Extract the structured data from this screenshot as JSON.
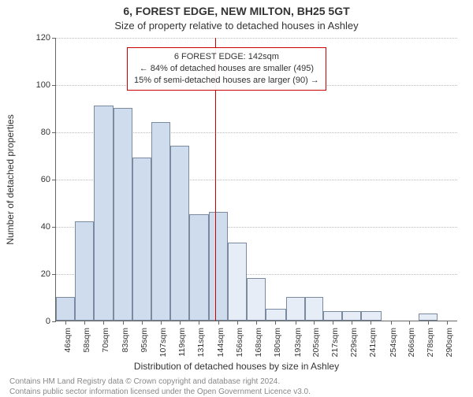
{
  "chart": {
    "type": "histogram",
    "title_line1": "6, FOREST EDGE, NEW MILTON, BH25 5GT",
    "title_line2": "Size of property relative to detached houses in Ashley",
    "title_fontsize": 14,
    "subtitle_fontsize": 13,
    "background_color": "#ffffff",
    "bar_fill_color": "#cfdcee",
    "bar_fill_color_right": "#e6edf7",
    "bar_border_color": "#7a8aa0",
    "grid_color": "#bbbbbb",
    "axis_color": "#666666",
    "marker_color": "#cc0000",
    "marker_value": 142,
    "ylim": [
      0,
      120
    ],
    "ytick_step": 20,
    "xlim": [
      40,
      297
    ],
    "yaxis_label": "Number of detached properties",
    "xaxis_label": "Distribution of detached houses by size in Ashley",
    "label_fontsize": 12,
    "tick_fontsize": 11,
    "x_ticks": [
      {
        "value": 46,
        "label": "46sqm"
      },
      {
        "value": 58,
        "label": "58sqm"
      },
      {
        "value": 70,
        "label": "70sqm"
      },
      {
        "value": 83,
        "label": "83sqm"
      },
      {
        "value": 95,
        "label": "95sqm"
      },
      {
        "value": 107,
        "label": "107sqm"
      },
      {
        "value": 119,
        "label": "119sqm"
      },
      {
        "value": 131,
        "label": "131sqm"
      },
      {
        "value": 144,
        "label": "144sqm"
      },
      {
        "value": 156,
        "label": "156sqm"
      },
      {
        "value": 168,
        "label": "168sqm"
      },
      {
        "value": 180,
        "label": "180sqm"
      },
      {
        "value": 193,
        "label": "193sqm"
      },
      {
        "value": 205,
        "label": "205sqm"
      },
      {
        "value": 217,
        "label": "217sqm"
      },
      {
        "value": 229,
        "label": "229sqm"
      },
      {
        "value": 241,
        "label": "241sqm"
      },
      {
        "value": 254,
        "label": "254sqm"
      },
      {
        "value": 266,
        "label": "266sqm"
      },
      {
        "value": 278,
        "label": "278sqm"
      },
      {
        "value": 290,
        "label": "290sqm"
      }
    ],
    "bars": [
      {
        "x0": 40,
        "x1": 52,
        "count": 10
      },
      {
        "x0": 52,
        "x1": 64,
        "count": 42
      },
      {
        "x0": 64,
        "x1": 77,
        "count": 91
      },
      {
        "x0": 77,
        "x1": 89,
        "count": 90
      },
      {
        "x0": 89,
        "x1": 101,
        "count": 69
      },
      {
        "x0": 101,
        "x1": 113,
        "count": 84
      },
      {
        "x0": 113,
        "x1": 125,
        "count": 74
      },
      {
        "x0": 125,
        "x1": 138,
        "count": 45
      },
      {
        "x0": 138,
        "x1": 150,
        "count": 46
      },
      {
        "x0": 150,
        "x1": 162,
        "count": 33
      },
      {
        "x0": 162,
        "x1": 174,
        "count": 18
      },
      {
        "x0": 174,
        "x1": 187,
        "count": 5
      },
      {
        "x0": 187,
        "x1": 199,
        "count": 10
      },
      {
        "x0": 199,
        "x1": 211,
        "count": 10
      },
      {
        "x0": 211,
        "x1": 223,
        "count": 4
      },
      {
        "x0": 223,
        "x1": 235,
        "count": 4
      },
      {
        "x0": 235,
        "x1": 248,
        "count": 4
      },
      {
        "x0": 248,
        "x1": 260,
        "count": 0
      },
      {
        "x0": 260,
        "x1": 272,
        "count": 0
      },
      {
        "x0": 272,
        "x1": 284,
        "count": 3
      },
      {
        "x0": 284,
        "x1": 297,
        "count": 0
      }
    ],
    "annotation": {
      "line1": "6 FOREST EDGE: 142sqm",
      "line2": "← 84% of detached houses are smaller (495)",
      "line3": "15% of semi-detached houses are larger (90) →"
    }
  },
  "footer": {
    "line1": "Contains HM Land Registry data © Crown copyright and database right 2024.",
    "line2": "Contains public sector information licensed under the Open Government Licence v3.0.",
    "color": "#888888",
    "fontsize": 10
  }
}
